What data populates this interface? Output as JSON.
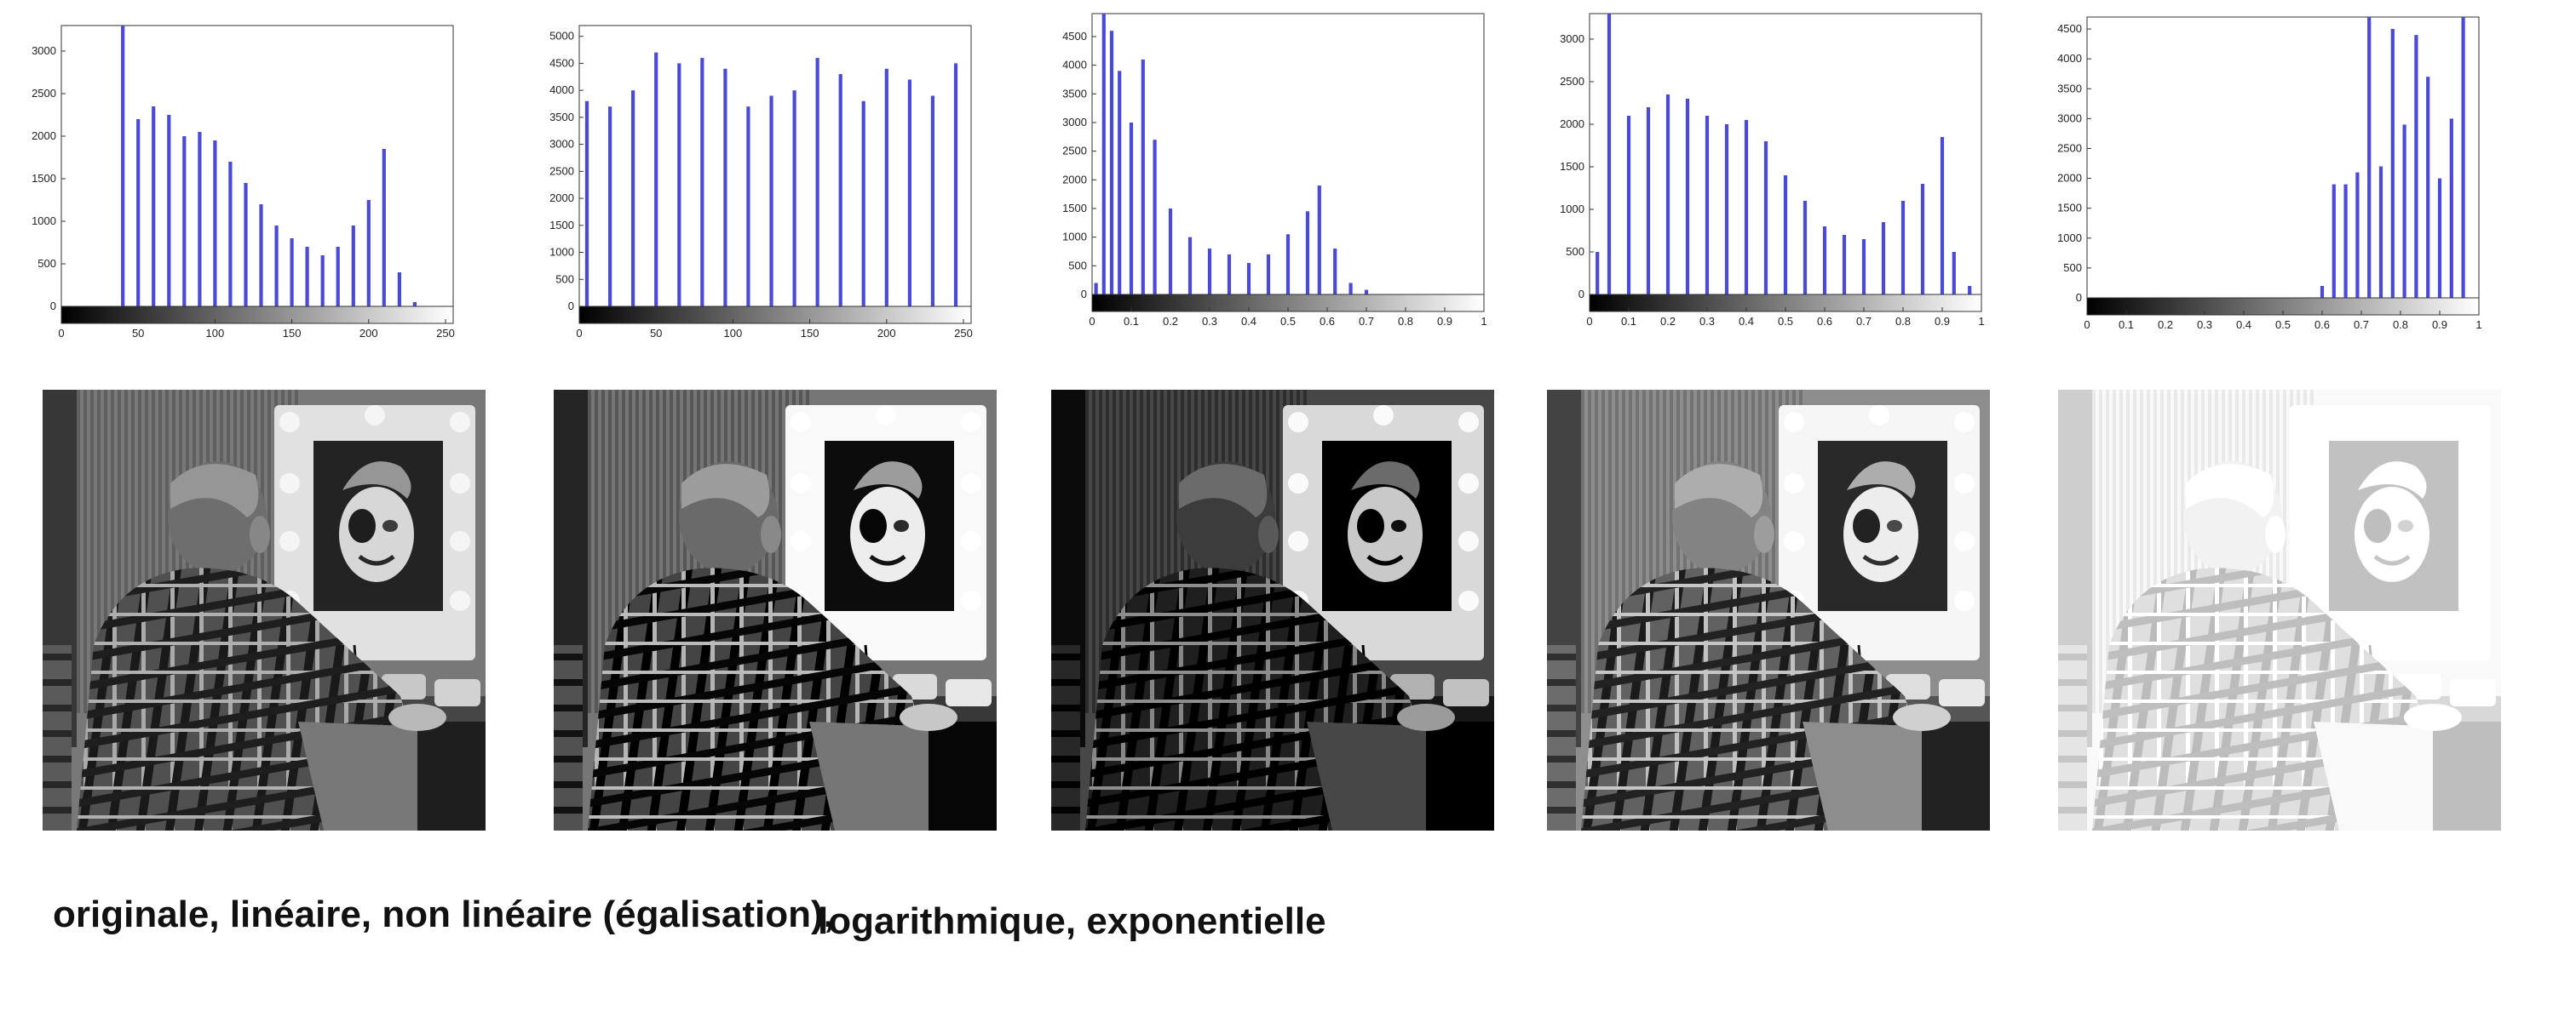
{
  "chart_data": [
    {
      "type": "bar",
      "x": [
        30,
        40,
        50,
        60,
        70,
        80,
        90,
        100,
        110,
        120,
        130,
        140,
        150,
        160,
        170,
        180,
        190,
        200,
        210,
        220,
        230,
        240
      ],
      "values": [
        0,
        3300,
        2200,
        2350,
        2250,
        2000,
        2050,
        1950,
        1700,
        1450,
        1200,
        950,
        800,
        700,
        600,
        700,
        950,
        1250,
        1850,
        400,
        50,
        0
      ],
      "xlim": [
        0,
        255
      ],
      "ylim": [
        0,
        3300
      ],
      "xticks": [
        "0",
        "50",
        "100",
        "150",
        "200",
        "250"
      ],
      "yticks": [
        "0",
        "500",
        "1000",
        "1500",
        "2000",
        "2500",
        "3000"
      ],
      "colorbar": "gray"
    },
    {
      "type": "bar",
      "x": [
        5,
        20,
        35,
        50,
        65,
        80,
        95,
        110,
        125,
        140,
        155,
        170,
        185,
        200,
        215,
        230,
        245
      ],
      "values": [
        3800,
        3700,
        4000,
        4700,
        4500,
        4600,
        4400,
        3700,
        3900,
        4000,
        4600,
        4300,
        3800,
        4400,
        4200,
        3900,
        4500
      ],
      "xlim": [
        0,
        255
      ],
      "ylim": [
        0,
        5200
      ],
      "xticks": [
        "0",
        "50",
        "100",
        "150",
        "200",
        "250"
      ],
      "yticks": [
        "0",
        "500",
        "1000",
        "1500",
        "2000",
        "2500",
        "3000",
        "3500",
        "4000",
        "4500",
        "5000"
      ],
      "colorbar": "gray"
    },
    {
      "type": "bar",
      "x": [
        0.01,
        0.03,
        0.05,
        0.07,
        0.1,
        0.13,
        0.16,
        0.2,
        0.25,
        0.3,
        0.35,
        0.4,
        0.45,
        0.5,
        0.55,
        0.58,
        0.62,
        0.66,
        0.7,
        0.74
      ],
      "values": [
        200,
        4900,
        4600,
        3900,
        3000,
        4100,
        2700,
        1500,
        1000,
        800,
        700,
        550,
        700,
        1050,
        1450,
        1900,
        800,
        200,
        80,
        0
      ],
      "xlim": [
        0,
        1
      ],
      "ylim": [
        0,
        4900
      ],
      "xticks": [
        "0",
        "0.1",
        "0.2",
        "0.3",
        "0.4",
        "0.5",
        "0.6",
        "0.7",
        "0.8",
        "0.9",
        "1"
      ],
      "yticks": [
        "0",
        "500",
        "1000",
        "1500",
        "2000",
        "2500",
        "3000",
        "3500",
        "4000",
        "4500"
      ],
      "colorbar": "gray"
    },
    {
      "type": "bar",
      "x": [
        0.02,
        0.05,
        0.1,
        0.15,
        0.2,
        0.25,
        0.3,
        0.35,
        0.4,
        0.45,
        0.5,
        0.55,
        0.6,
        0.65,
        0.7,
        0.75,
        0.8,
        0.85,
        0.9,
        0.93,
        0.97
      ],
      "values": [
        500,
        3300,
        2100,
        2200,
        2350,
        2300,
        2100,
        2000,
        2050,
        1800,
        1400,
        1100,
        800,
        700,
        650,
        850,
        1100,
        1300,
        1850,
        500,
        100
      ],
      "xlim": [
        0,
        1
      ],
      "ylim": [
        0,
        3300
      ],
      "xticks": [
        "0",
        "0.1",
        "0.2",
        "0.3",
        "0.4",
        "0.5",
        "0.6",
        "0.7",
        "0.8",
        "0.9",
        "1"
      ],
      "yticks": [
        "0",
        "500",
        "1000",
        "1500",
        "2000",
        "2500",
        "3000"
      ],
      "colorbar": "gray"
    },
    {
      "type": "bar",
      "x": [
        0.6,
        0.63,
        0.66,
        0.69,
        0.72,
        0.75,
        0.78,
        0.81,
        0.84,
        0.87,
        0.9,
        0.93,
        0.96
      ],
      "values": [
        200,
        1900,
        1900,
        2100,
        4700,
        2200,
        4500,
        2900,
        4400,
        3700,
        2000,
        3000,
        4700
      ],
      "xlim": [
        0,
        1
      ],
      "ylim": [
        0,
        4700
      ],
      "xticks": [
        "0",
        "0.1",
        "0.2",
        "0.3",
        "0.4",
        "0.5",
        "0.6",
        "0.7",
        "0.8",
        "0.9",
        "1"
      ],
      "yticks": [
        "0",
        "500",
        "1000",
        "1500",
        "2000",
        "2500",
        "3000",
        "3500",
        "4000",
        "4500"
      ],
      "colorbar": "gray"
    }
  ],
  "images": [
    {
      "name": "original",
      "brightness": 1.0,
      "contrast": 1.0,
      "gamma": 1.0
    },
    {
      "name": "lineaire",
      "brightness": 1.0,
      "contrast": 1.25,
      "gamma": 1.0
    },
    {
      "name": "non-lineaire",
      "brightness": 1.0,
      "contrast": 1.1,
      "gamma": 1.6
    },
    {
      "name": "logarithmique",
      "brightness": 1.0,
      "contrast": 1.15,
      "gamma": 0.8
    },
    {
      "name": "exponentielle",
      "brightness": 1.45,
      "contrast": 0.45,
      "gamma": 1.0
    }
  ],
  "colors": {
    "bar": "#4a4ad6",
    "axis": "#333333"
  },
  "caption": {
    "part1": "originale, linéaire, non linéaire (égalisation),",
    "part2": "logarithmique, exponentielle"
  }
}
